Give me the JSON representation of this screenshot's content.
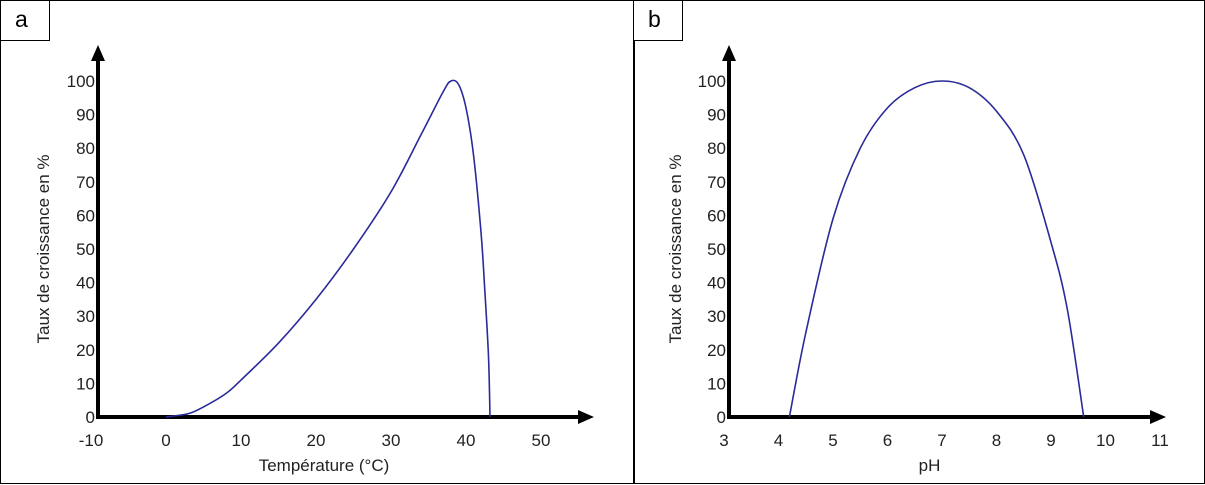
{
  "chart_data": [
    {
      "panel_label": "a",
      "type": "line",
      "xlabel": "Température (°C)",
      "ylabel": "Taux de croissance en %",
      "xlim": [
        -10,
        56
      ],
      "ylim": [
        0,
        110
      ],
      "xticks": [
        -10,
        0,
        10,
        20,
        30,
        40,
        50
      ],
      "yticks": [
        0,
        10,
        20,
        30,
        40,
        50,
        60,
        70,
        80,
        90,
        100
      ],
      "grid": false,
      "line_color": "#2a2a9a",
      "series": [
        {
          "x": [
            0,
            3,
            5,
            8,
            10,
            15,
            20,
            25,
            30,
            34,
            37,
            38,
            39,
            40,
            41,
            42,
            42.5,
            43,
            43.2
          ],
          "y": [
            0,
            1,
            3,
            7,
            11,
            22,
            35,
            50,
            67,
            84,
            97,
            100,
            99,
            92,
            78,
            55,
            38,
            18,
            0
          ]
        }
      ]
    },
    {
      "panel_label": "b",
      "type": "line",
      "xlabel": "pH",
      "ylabel": "Taux de croissance en %",
      "xlim": [
        3,
        11.3
      ],
      "ylim": [
        0,
        110
      ],
      "xticks": [
        3,
        4,
        5,
        6,
        7,
        8,
        9,
        10,
        11
      ],
      "yticks": [
        0,
        10,
        20,
        30,
        40,
        50,
        60,
        70,
        80,
        90,
        100
      ],
      "grid": false,
      "line_color": "#2a2a9a",
      "series": [
        {
          "x": [
            4.2,
            4.5,
            5,
            5.5,
            6,
            6.5,
            7,
            7.5,
            8,
            8.5,
            9,
            9.3,
            9.6
          ],
          "y": [
            0,
            25,
            59,
            80,
            92,
            98,
            100,
            98,
            91,
            78,
            52,
            32,
            0
          ]
        }
      ]
    }
  ]
}
